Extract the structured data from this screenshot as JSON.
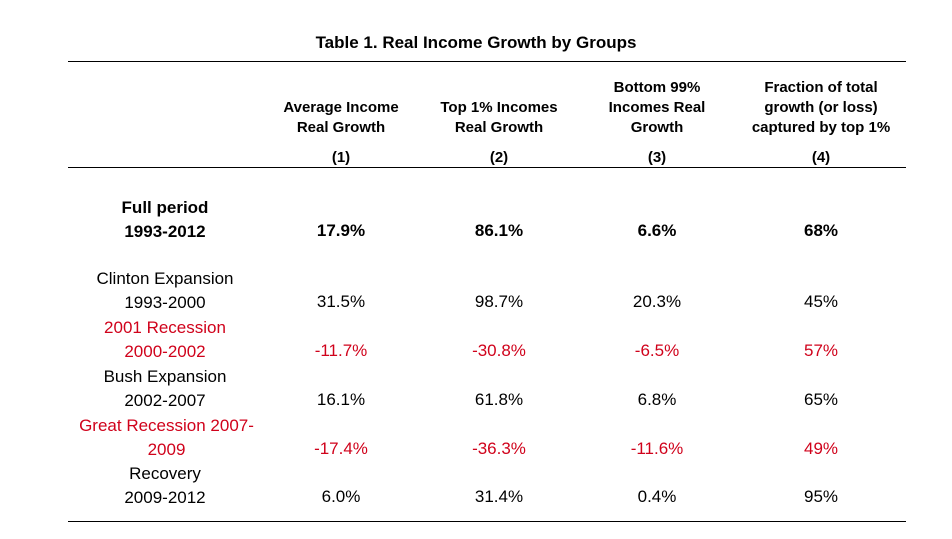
{
  "title": "Table 1. Real Income Growth by Groups",
  "columns": [
    {
      "lines": [
        "Average Income",
        "Real Growth"
      ],
      "number": "(1)"
    },
    {
      "lines": [
        "Top 1% Incomes",
        "Real Growth"
      ],
      "number": "(2)"
    },
    {
      "lines": [
        "Bottom 99%",
        "Incomes Real",
        "Growth"
      ],
      "number": "(3)"
    },
    {
      "lines": [
        "Fraction of total",
        "growth (or loss)",
        "captured by top 1%"
      ],
      "number": "(4)"
    }
  ],
  "rows": [
    {
      "label": [
        "Full period",
        "1993-2012"
      ],
      "values": [
        "17.9%",
        "86.1%",
        "6.6%",
        "68%"
      ],
      "bold": true,
      "red": false
    },
    {
      "label": [
        "Clinton Expansion",
        "1993-2000"
      ],
      "values": [
        "31.5%",
        "98.7%",
        "20.3%",
        "45%"
      ],
      "bold": false,
      "red": false
    },
    {
      "label": [
        "2001 Recession",
        "2000-2002"
      ],
      "values": [
        "-11.7%",
        "-30.8%",
        "-6.5%",
        "57%"
      ],
      "bold": false,
      "red": true
    },
    {
      "label": [
        "Bush Expansion",
        "2002-2007"
      ],
      "values": [
        "16.1%",
        "61.8%",
        "6.8%",
        "65%"
      ],
      "bold": false,
      "red": false
    },
    {
      "label": [
        "Great Recession 2007-",
        "2009"
      ],
      "values": [
        "-17.4%",
        "-36.3%",
        "-11.6%",
        "49%"
      ],
      "bold": false,
      "red": true
    },
    {
      "label": [
        "Recovery",
        "2009-2012"
      ],
      "values": [
        "6.0%",
        "31.4%",
        "0.4%",
        "95%"
      ],
      "bold": false,
      "red": false
    }
  ],
  "colors": {
    "negative": "#d0021b",
    "text": "#000000"
  }
}
